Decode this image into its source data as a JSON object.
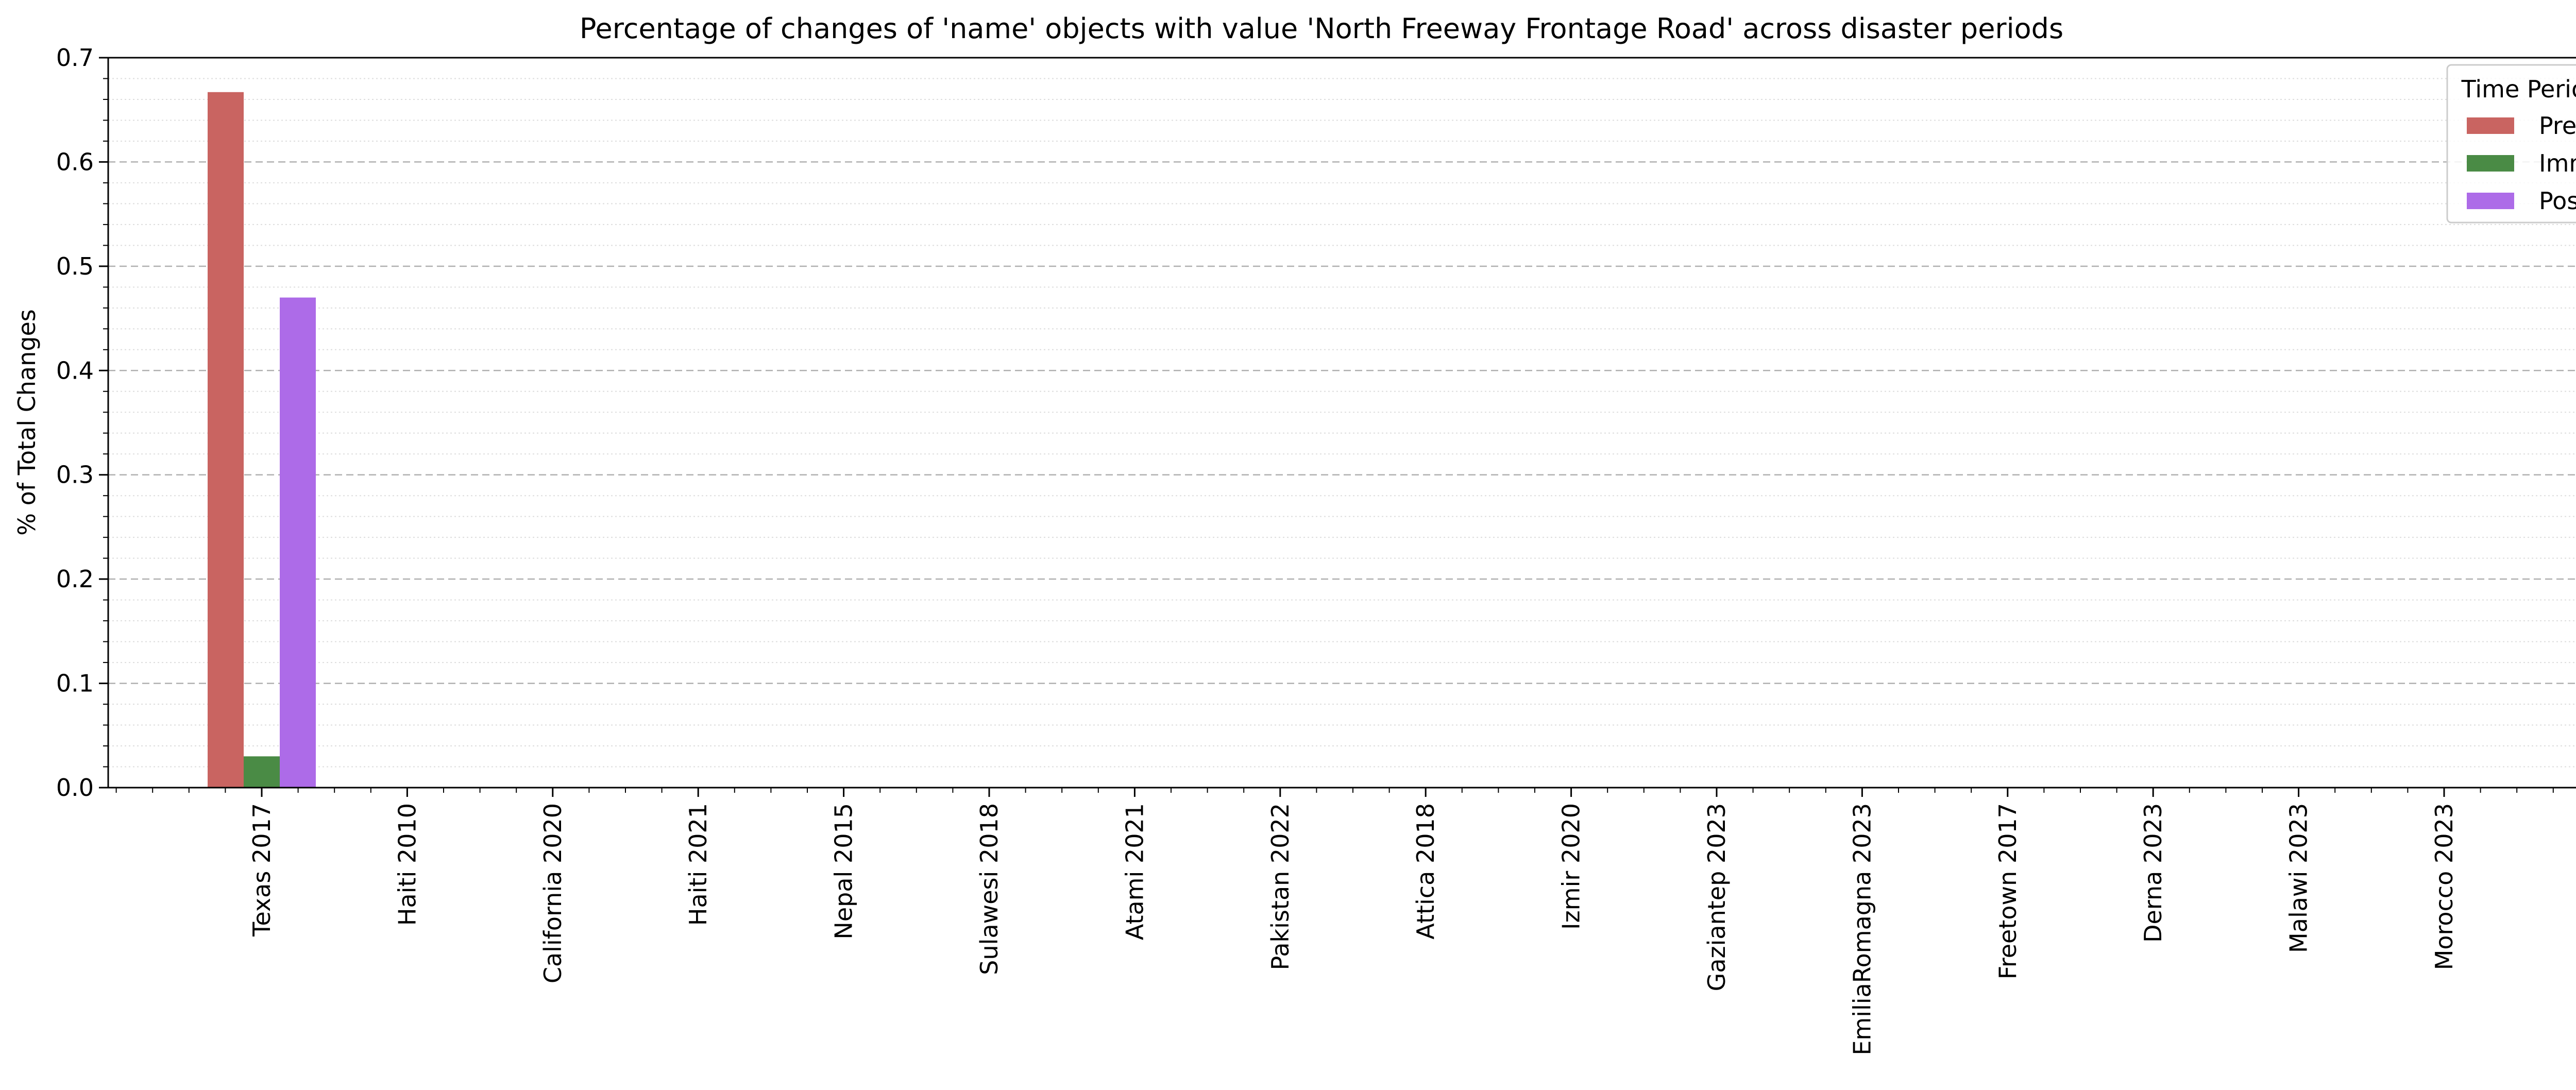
{
  "chart_data": {
    "type": "bar",
    "title": "Percentage of changes of 'name' objects with value 'North Freeway Frontage Road' across disaster periods",
    "xlabel": "",
    "ylabel": "% of Total Changes",
    "ylim": [
      0,
      0.7
    ],
    "yticks": [
      "0.0",
      "0.1",
      "0.2",
      "0.3",
      "0.4",
      "0.5",
      "0.6",
      "0.7"
    ],
    "grid": true,
    "legend": {
      "title": "Time Period",
      "placement": "top-right"
    },
    "categories": [
      "Texas 2017",
      "Haiti 2010",
      "California 2020",
      "Haiti 2021",
      "Nepal 2015",
      "Sulawesi 2018",
      "Atami 2021",
      "Pakistan 2022",
      "Attica 2018",
      "Izmir 2020",
      "Gaziantep 2023",
      "EmiliaRomagna 2023",
      "Freetown 2017",
      "Derna 2023",
      "Malawi 2023",
      "Morocco 2023"
    ],
    "series": [
      {
        "name": "Pre",
        "color": "#c96461",
        "values": [
          0.667,
          0,
          0,
          0,
          0,
          0,
          0,
          0,
          0,
          0,
          0,
          0,
          0,
          0,
          0,
          0
        ]
      },
      {
        "name": "Imm",
        "color": "#4a8b45",
        "values": [
          0.03,
          0,
          0,
          0,
          0,
          0,
          0,
          0,
          0,
          0,
          0,
          0,
          0,
          0,
          0,
          0
        ]
      },
      {
        "name": "Post",
        "color": "#ad6be8",
        "values": [
          0.47,
          0,
          0,
          0,
          0,
          0,
          0,
          0,
          0,
          0,
          0,
          0,
          0,
          0,
          0,
          0
        ]
      }
    ]
  }
}
